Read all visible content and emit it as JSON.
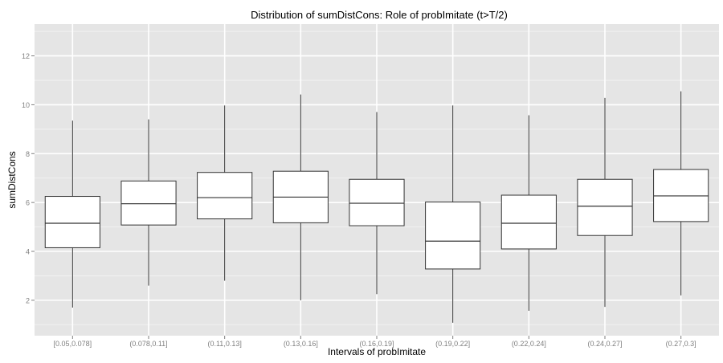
{
  "chart_data": {
    "type": "boxplot",
    "title": "Distribution of sumDistCons: Role of probImitate (t>T/2)",
    "xlabel": "Intervals of probImitate",
    "ylabel": "sumDistCons",
    "ylim": [
      0.55,
      13.3
    ],
    "yticks": [
      2,
      4,
      6,
      8,
      10,
      12
    ],
    "grid": true,
    "categories": [
      "[0.05,0.078]",
      "(0.078,0.11]",
      "(0.11,0.13]",
      "(0.13,0.16]",
      "(0.16,0.19]",
      "(0.19,0.22]",
      "(0.22,0.24]",
      "(0.24,0.27]",
      "(0.27,0.3]"
    ],
    "boxes": [
      {
        "whisker_low": 1.7,
        "q1": 4.15,
        "median": 5.15,
        "q3": 6.25,
        "whisker_high": 9.35
      },
      {
        "whisker_low": 2.6,
        "q1": 5.08,
        "median": 5.95,
        "q3": 6.88,
        "whisker_high": 9.4
      },
      {
        "whisker_low": 2.8,
        "q1": 5.33,
        "median": 6.2,
        "q3": 7.23,
        "whisker_high": 9.97
      },
      {
        "whisker_low": 2.0,
        "q1": 5.17,
        "median": 6.22,
        "q3": 7.28,
        "whisker_high": 10.42
      },
      {
        "whisker_low": 2.25,
        "q1": 5.05,
        "median": 5.97,
        "q3": 6.95,
        "whisker_high": 9.7
      },
      {
        "whisker_low": 1.08,
        "q1": 3.28,
        "median": 4.42,
        "q3": 6.02,
        "whisker_high": 9.97
      },
      {
        "whisker_low": 1.57,
        "q1": 4.1,
        "median": 5.15,
        "q3": 6.3,
        "whisker_high": 9.57
      },
      {
        "whisker_low": 1.73,
        "q1": 4.65,
        "median": 5.85,
        "q3": 6.95,
        "whisker_high": 10.28
      },
      {
        "whisker_low": 2.2,
        "q1": 5.22,
        "median": 6.27,
        "q3": 7.35,
        "whisker_high": 10.55
      }
    ],
    "colors": {
      "panel": "#e5e5e5",
      "grid_major": "#ffffff",
      "grid_minor": "#f2f2f2",
      "box_fill": "#ffffff",
      "box_stroke": "#333333",
      "tick_label": "#7f7f7f",
      "text": "#000000"
    }
  }
}
